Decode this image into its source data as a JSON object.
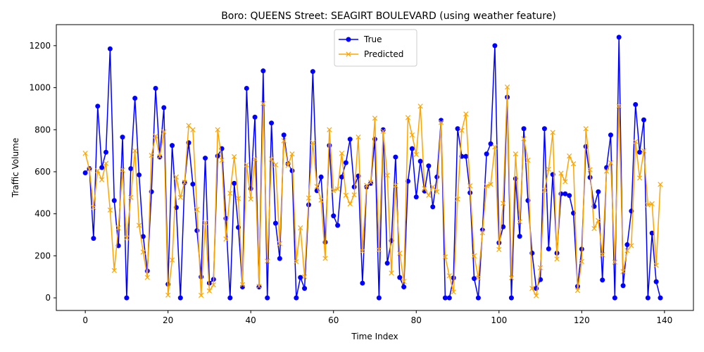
{
  "chart_data": {
    "type": "line",
    "title": "Boro: QUEENS Street: SEAGIRT BOULEVARD (using weather feature)",
    "xlabel": "Time Index",
    "ylabel": "Traffic Volume",
    "xlim": [
      -7,
      147
    ],
    "ylim": [
      -60,
      1300
    ],
    "xticks": [
      0,
      20,
      40,
      60,
      80,
      100,
      120,
      140
    ],
    "yticks": [
      0,
      200,
      400,
      600,
      800,
      1000,
      1200
    ],
    "grid": false,
    "legend_position": "upper center",
    "x_start": 0,
    "series": [
      {
        "name": "True",
        "color": "#0000ff",
        "marker": "circle",
        "values": [
          595,
          615,
          283,
          912,
          620,
          693,
          1185,
          463,
          248,
          765,
          0,
          615,
          950,
          585,
          292,
          128,
          505,
          997,
          670,
          905,
          65,
          725,
          430,
          0,
          548,
          738,
          541,
          320,
          100,
          665,
          70,
          88,
          675,
          710,
          378,
          0,
          545,
          335,
          52,
          997,
          520,
          860,
          52,
          1080,
          0,
          832,
          355,
          187,
          775,
          638,
          605,
          0,
          97,
          45,
          443,
          1077,
          510,
          575,
          265,
          725,
          390,
          345,
          575,
          643,
          755,
          528,
          580,
          70,
          528,
          545,
          755,
          0,
          800,
          165,
          272,
          670,
          97,
          52,
          555,
          710,
          480,
          650,
          508,
          628,
          433,
          575,
          845,
          0,
          0,
          95,
          805,
          673,
          673,
          500,
          92,
          0,
          323,
          685,
          733,
          1200,
          262,
          338,
          955,
          0,
          567,
          293,
          805,
          463,
          213,
          45,
          87,
          805,
          233,
          587,
          213,
          495,
          495,
          487,
          403,
          55,
          232,
          720,
          573,
          435,
          505,
          85,
          620,
          775,
          0,
          1240,
          58,
          253,
          413,
          920,
          693,
          847,
          0,
          308,
          77,
          0
        ]
      },
      {
        "name": "Predicted",
        "color": "#ffa500",
        "marker": "x",
        "values": [
          688,
          612,
          430,
          605,
          562,
          640,
          418,
          130,
          333,
          608,
          285,
          478,
          700,
          345,
          218,
          97,
          678,
          770,
          672,
          790,
          13,
          180,
          575,
          478,
          550,
          820,
          800,
          420,
          12,
          358,
          33,
          62,
          800,
          655,
          280,
          498,
          672,
          473,
          63,
          633,
          470,
          660,
          55,
          925,
          175,
          660,
          633,
          258,
          748,
          630,
          685,
          172,
          333,
          100,
          475,
          738,
          530,
          465,
          188,
          800,
          510,
          518,
          688,
          488,
          447,
          490,
          765,
          222,
          535,
          550,
          855,
          228,
          793,
          583,
          118,
          535,
          212,
          78,
          858,
          775,
          682,
          912,
          520,
          488,
          528,
          505,
          835,
          195,
          105,
          28,
          470,
          797,
          875,
          533,
          200,
          95,
          310,
          533,
          540,
          718,
          230,
          450,
          1003,
          95,
          685,
          362,
          757,
          655,
          45,
          10,
          143,
          512,
          612,
          787,
          185,
          593,
          553,
          675,
          638,
          35,
          173,
          805,
          610,
          330,
          368,
          205,
          603,
          643,
          170,
          913,
          125,
          225,
          248,
          743,
          570,
          700,
          442,
          448,
          155,
          540
        ]
      }
    ]
  }
}
